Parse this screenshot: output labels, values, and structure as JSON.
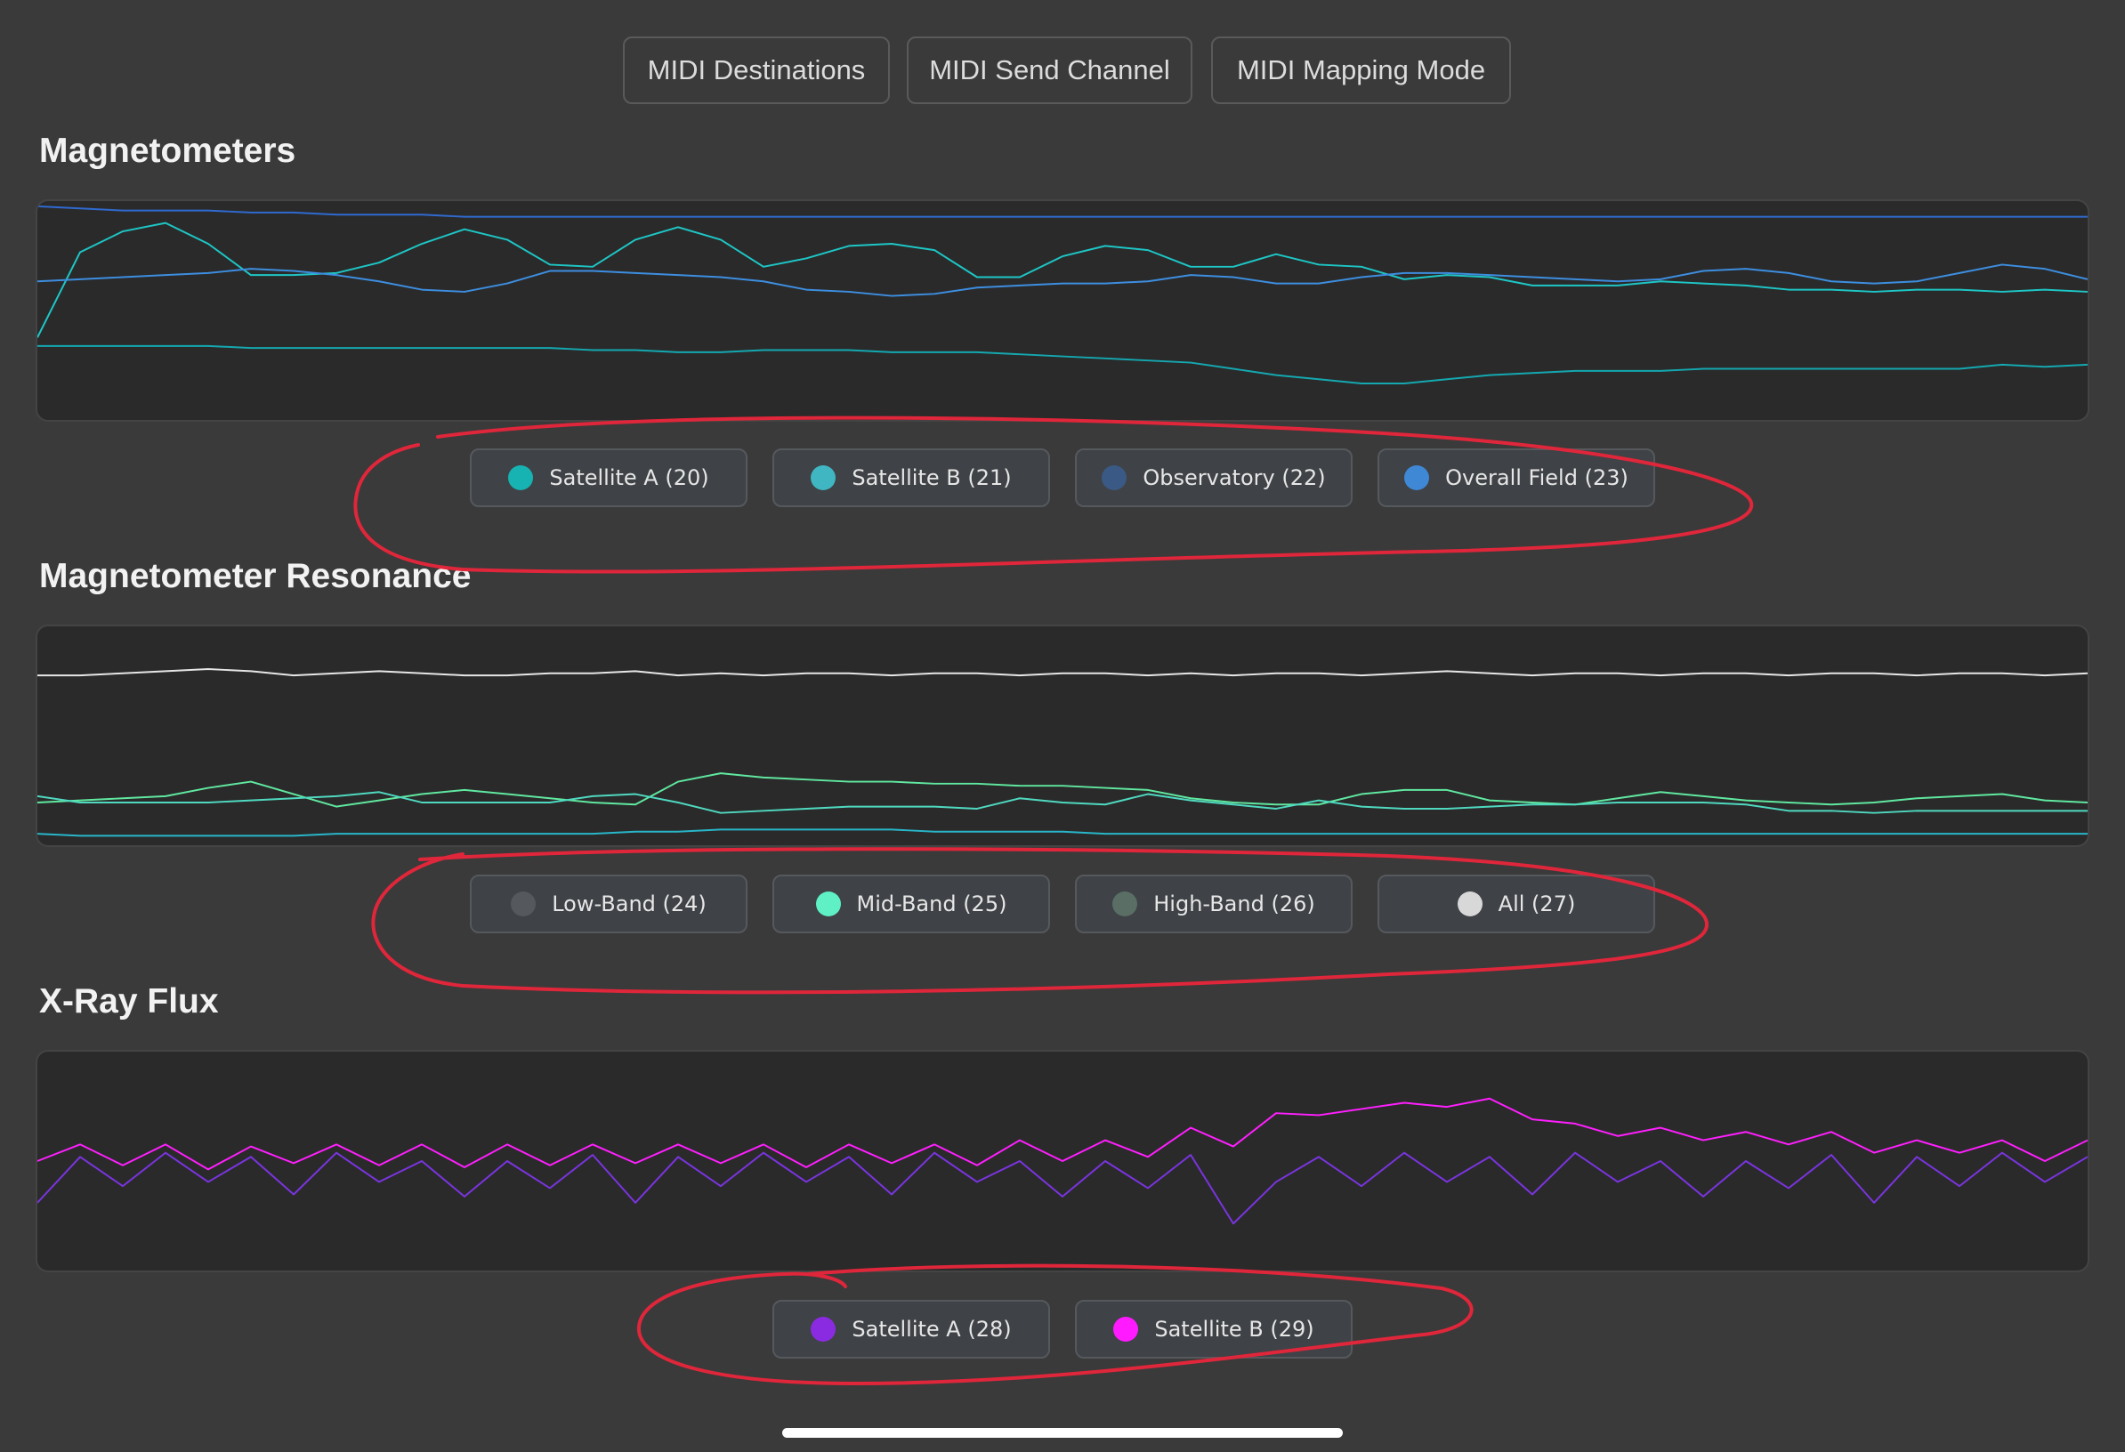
{
  "toolbar": {
    "buttons": [
      "MIDI Destinations",
      "MIDI Send Channel",
      "MIDI Mapping Mode"
    ]
  },
  "sections": [
    {
      "title": "Magnetometers",
      "legend": [
        {
          "label": "Satellite A (20)",
          "color": "#17b3b3"
        },
        {
          "label": "Satellite B (21)",
          "color": "#3fb6c2"
        },
        {
          "label": "Observatory (22)",
          "color": "#3a5a85"
        },
        {
          "label": "Overall Field (23)",
          "color": "#3f88d6"
        }
      ]
    },
    {
      "title": "Magnetometer Resonance",
      "legend": [
        {
          "label": "Low-Band (24)",
          "color": "#55585c"
        },
        {
          "label": "Mid-Band (25)",
          "color": "#5ff0c5"
        },
        {
          "label": "High-Band (26)",
          "color": "#5a6e66"
        },
        {
          "label": "All (27)",
          "color": "#d8d8d8"
        }
      ]
    },
    {
      "title": "X-Ray Flux",
      "legend": [
        {
          "label": "Satellite A (28)",
          "color": "#8a2be2"
        },
        {
          "label": "Satellite B (29)",
          "color": "#ff1aff"
        }
      ]
    }
  ],
  "chart_data": [
    {
      "type": "line",
      "title": "Magnetometers",
      "y_range": [
        0,
        100
      ],
      "series": [
        {
          "name": "Satellite A (20)",
          "color": "#1ec6c6",
          "values": [
            37,
            78,
            88,
            92,
            82,
            67,
            67,
            68,
            73,
            82,
            89,
            84,
            72,
            71,
            84,
            90,
            84,
            71,
            75,
            81,
            82,
            79,
            66,
            66,
            76,
            81,
            79,
            71,
            71,
            77,
            72,
            71,
            65,
            67,
            66,
            62,
            62,
            62,
            64,
            63,
            62,
            60,
            60,
            59,
            60,
            60,
            59,
            60,
            59
          ]
        },
        {
          "name": "Satellite B (21)",
          "color": "#14a8b0",
          "values": [
            33,
            33,
            33,
            33,
            33,
            32,
            32,
            32,
            32,
            32,
            32,
            32,
            32,
            31,
            31,
            30,
            30,
            31,
            31,
            31,
            30,
            30,
            30,
            29,
            28,
            27,
            26,
            25,
            22,
            19,
            17,
            15,
            15,
            17,
            19,
            20,
            21,
            21,
            21,
            22,
            22,
            22,
            22,
            22,
            22,
            22,
            24,
            23,
            24
          ]
        },
        {
          "name": "Observatory (22)",
          "color": "#2f6ad0",
          "values": [
            100,
            99,
            98,
            98,
            98,
            97,
            97,
            96,
            96,
            96,
            95,
            95,
            95,
            95,
            95,
            95,
            95,
            95,
            95,
            95,
            95,
            95,
            95,
            95,
            95,
            95,
            95,
            95,
            95,
            95,
            95,
            95,
            95,
            95,
            95,
            95,
            95,
            95,
            95,
            95,
            95,
            95,
            95,
            95,
            95,
            95,
            95,
            95,
            95
          ]
        },
        {
          "name": "Overall Field (23)",
          "color": "#3d8ee0",
          "values": [
            64,
            65,
            66,
            67,
            68,
            70,
            69,
            67,
            64,
            60,
            59,
            63,
            69,
            69,
            68,
            67,
            66,
            64,
            60,
            59,
            57,
            58,
            61,
            62,
            63,
            63,
            64,
            67,
            66,
            63,
            63,
            66,
            68,
            68,
            67,
            66,
            65,
            64,
            65,
            69,
            70,
            68,
            64,
            63,
            64,
            68,
            72,
            70,
            65
          ]
        }
      ]
    },
    {
      "type": "line",
      "title": "Magnetometer Resonance",
      "y_range": [
        0,
        100
      ],
      "series": [
        {
          "name": "All (27)",
          "color": "#e6e6e6",
          "values": [
            79,
            79,
            80,
            81,
            82,
            81,
            79,
            80,
            81,
            80,
            79,
            79,
            80,
            80,
            81,
            79,
            80,
            79,
            80,
            80,
            79,
            80,
            80,
            79,
            80,
            80,
            79,
            80,
            79,
            80,
            80,
            79,
            80,
            81,
            80,
            79,
            80,
            80,
            79,
            80,
            80,
            79,
            80,
            80,
            79,
            80,
            80,
            79,
            80
          ]
        },
        {
          "name": "Mid-Band (25)",
          "color": "#60e8a0",
          "values": [
            18,
            19,
            20,
            21,
            25,
            28,
            22,
            16,
            19,
            22,
            24,
            22,
            20,
            18,
            17,
            28,
            32,
            30,
            29,
            28,
            28,
            27,
            27,
            26,
            26,
            25,
            24,
            20,
            18,
            17,
            17,
            22,
            24,
            24,
            19,
            18,
            17,
            20,
            23,
            21,
            19,
            18,
            17,
            18,
            20,
            21,
            22,
            19,
            18
          ]
        },
        {
          "name": "High-Band (26)",
          "color": "#4fd9c0",
          "values": [
            21,
            18,
            18,
            18,
            18,
            19,
            20,
            21,
            23,
            18,
            18,
            18,
            18,
            21,
            22,
            18,
            13,
            14,
            15,
            16,
            16,
            16,
            15,
            20,
            18,
            17,
            22,
            19,
            17,
            15,
            19,
            16,
            15,
            15,
            16,
            17,
            17,
            18,
            18,
            18,
            17,
            14,
            14,
            13,
            14,
            14,
            14,
            14,
            14
          ]
        },
        {
          "name": "Low-Band (24)",
          "color": "#28b6c9",
          "values": [
            3,
            2,
            2,
            2,
            2,
            2,
            2,
            3,
            3,
            3,
            3,
            3,
            3,
            3,
            4,
            4,
            5,
            5,
            5,
            5,
            5,
            4,
            4,
            4,
            4,
            3,
            3,
            3,
            3,
            3,
            3,
            3,
            3,
            3,
            3,
            3,
            3,
            3,
            3,
            3,
            3,
            3,
            3,
            3,
            3,
            3,
            3,
            3,
            3
          ]
        }
      ]
    },
    {
      "type": "line",
      "title": "X-Ray Flux",
      "y_range": [
        0,
        100
      ],
      "series": [
        {
          "name": "Satellite A (28)",
          "color": "#7a34e0",
          "values": [
            30,
            52,
            38,
            54,
            40,
            52,
            34,
            54,
            40,
            50,
            33,
            50,
            37,
            53,
            30,
            52,
            38,
            54,
            40,
            52,
            34,
            54,
            40,
            50,
            33,
            50,
            37,
            53,
            20,
            40,
            52,
            38,
            54,
            40,
            52,
            34,
            54,
            40,
            50,
            33,
            50,
            37,
            53,
            30,
            52,
            38,
            54,
            40,
            52
          ]
        },
        {
          "name": "Satellite B (29)",
          "color": "#ff1fff",
          "values": [
            50,
            58,
            48,
            58,
            46,
            57,
            49,
            58,
            48,
            58,
            47,
            58,
            48,
            58,
            49,
            58,
            49,
            58,
            47,
            58,
            49,
            58,
            48,
            60,
            50,
            60,
            52,
            66,
            57,
            73,
            72,
            75,
            78,
            76,
            80,
            70,
            68,
            62,
            66,
            60,
            64,
            58,
            64,
            54,
            60,
            54,
            60,
            50,
            60
          ]
        }
      ]
    }
  ]
}
